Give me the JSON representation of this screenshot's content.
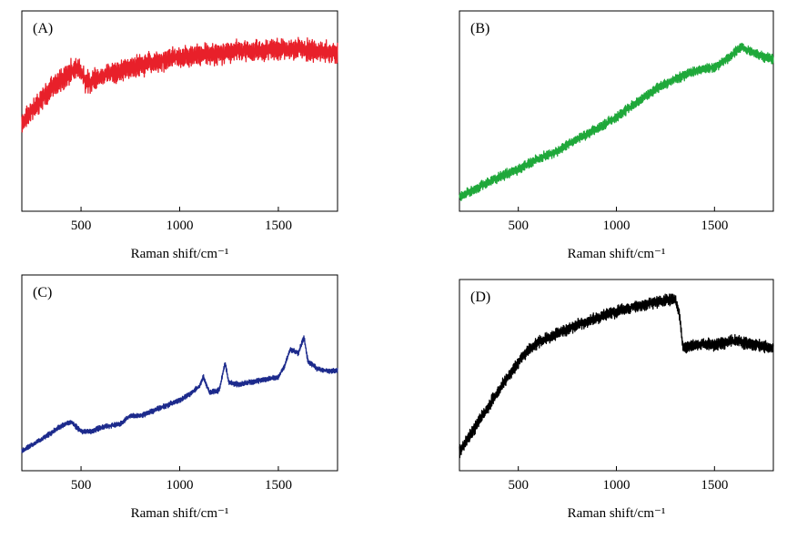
{
  "chart_data": [
    {
      "type": "line",
      "panel_label": "(A)",
      "xlabel": "Raman shift/cm⁻¹",
      "xlim": [
        200,
        1800
      ],
      "ylim": [
        0,
        1
      ],
      "xticks": [
        500,
        1000,
        1500
      ],
      "y_axis_ticks": false,
      "grid": false,
      "color": "#e8202a",
      "noise": 0.05,
      "series": [
        {
          "x": [
            200,
            250,
            300,
            350,
            400,
            450,
            490,
            520,
            550,
            600,
            700,
            800,
            900,
            1000,
            1100,
            1200,
            1300,
            1400,
            1500,
            1600,
            1700,
            1800
          ],
          "y": [
            0.44,
            0.5,
            0.56,
            0.61,
            0.66,
            0.7,
            0.72,
            0.65,
            0.64,
            0.67,
            0.7,
            0.73,
            0.75,
            0.77,
            0.78,
            0.79,
            0.8,
            0.8,
            0.81,
            0.81,
            0.8,
            0.79
          ]
        }
      ]
    },
    {
      "type": "line",
      "panel_label": "(B)",
      "xlabel": "Raman shift/cm⁻¹",
      "xlim": [
        200,
        1800
      ],
      "ylim": [
        0,
        1
      ],
      "xticks": [
        500,
        1000,
        1500
      ],
      "y_axis_ticks": false,
      "grid": false,
      "color": "#1fa83a",
      "noise": 0.022,
      "series": [
        {
          "x": [
            200,
            300,
            400,
            500,
            600,
            700,
            800,
            900,
            1000,
            1100,
            1200,
            1300,
            1400,
            1500,
            1550,
            1600,
            1640,
            1700,
            1750,
            1800
          ],
          "y": [
            0.07,
            0.12,
            0.17,
            0.21,
            0.26,
            0.3,
            0.36,
            0.41,
            0.47,
            0.54,
            0.61,
            0.66,
            0.7,
            0.72,
            0.75,
            0.79,
            0.82,
            0.79,
            0.77,
            0.76
          ]
        }
      ]
    },
    {
      "type": "line",
      "panel_label": "(C)",
      "xlabel": "Raman shift/cm⁻¹",
      "xlim": [
        200,
        1800
      ],
      "ylim": [
        0,
        1
      ],
      "xticks": [
        500,
        1000,
        1500
      ],
      "y_axis_ticks": false,
      "grid": false,
      "color": "#1c2a8c",
      "noise": 0.012,
      "series": [
        {
          "x": [
            200,
            300,
            400,
            450,
            500,
            550,
            600,
            700,
            750,
            800,
            900,
            1000,
            1050,
            1100,
            1120,
            1150,
            1200,
            1230,
            1250,
            1300,
            1400,
            1500,
            1530,
            1560,
            1600,
            1630,
            1650,
            1700,
            1750,
            1800
          ],
          "y": [
            0.1,
            0.16,
            0.23,
            0.25,
            0.2,
            0.2,
            0.22,
            0.24,
            0.28,
            0.28,
            0.32,
            0.36,
            0.39,
            0.43,
            0.48,
            0.4,
            0.41,
            0.55,
            0.45,
            0.44,
            0.46,
            0.48,
            0.53,
            0.62,
            0.6,
            0.68,
            0.56,
            0.52,
            0.51,
            0.51
          ]
        }
      ]
    },
    {
      "type": "line",
      "panel_label": "(D)",
      "xlabel": "Raman shift/cm⁻¹",
      "xlim": [
        200,
        1800
      ],
      "ylim": [
        0,
        1
      ],
      "xticks": [
        500,
        1000,
        1500
      ],
      "y_axis_ticks": false,
      "grid": false,
      "color": "#000000",
      "noise": 0.028,
      "series": [
        {
          "x": [
            200,
            300,
            400,
            500,
            550,
            600,
            700,
            800,
            900,
            1000,
            1100,
            1200,
            1250,
            1300,
            1320,
            1340,
            1400,
            1500,
            1600,
            1700,
            1800
          ],
          "y": [
            0.1,
            0.26,
            0.42,
            0.57,
            0.63,
            0.67,
            0.72,
            0.76,
            0.8,
            0.83,
            0.86,
            0.88,
            0.89,
            0.9,
            0.83,
            0.64,
            0.66,
            0.66,
            0.68,
            0.66,
            0.64
          ]
        }
      ]
    }
  ]
}
